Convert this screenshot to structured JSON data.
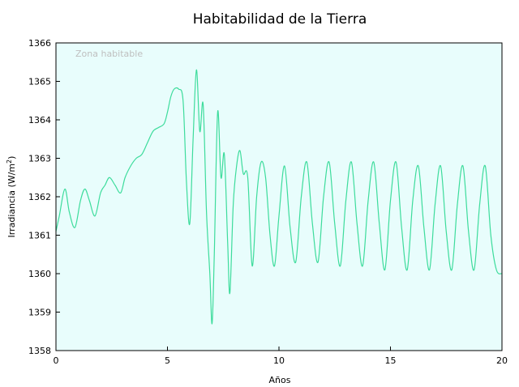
{
  "chart_data": {
    "type": "line",
    "title": "Habitabilidad de la Tierra",
    "xlabel": "Años",
    "ylabel_main": "Irradiancia (W/m",
    "ylabel_sup": "2",
    "ylabel_close": ")",
    "zone_label": "Zona habitable",
    "xlim": [
      0,
      20
    ],
    "ylim": [
      1358,
      1366
    ],
    "x_ticks": [
      "0",
      "5",
      "10",
      "15",
      "20"
    ],
    "y_ticks": [
      "1358",
      "1359",
      "1360",
      "1361",
      "1362",
      "1363",
      "1364",
      "1365",
      "1366"
    ],
    "grid": false,
    "colors": {
      "line": "#3ddc9c",
      "background": "#e8fdfc",
      "frame": "#000000"
    },
    "series": [
      {
        "x": [
          0,
          0.15,
          0.4,
          0.6,
          0.85,
          1.1,
          1.3,
          1.5,
          1.75,
          2.0,
          2.2,
          2.4,
          2.65,
          2.9,
          3.1,
          3.35,
          3.6,
          3.85,
          4.1,
          4.35,
          4.6,
          4.85,
          5.0,
          5.15,
          5.3,
          5.5,
          5.7,
          5.85,
          6.0,
          6.15,
          6.3,
          6.45,
          6.6,
          6.75,
          6.9,
          7.0,
          7.1,
          7.25,
          7.4,
          7.55,
          7.7,
          7.8,
          7.95,
          8.1,
          8.25,
          8.4,
          8.6,
          8.8,
          9.0,
          9.2,
          9.4,
          9.6,
          9.8,
          10.0,
          10.25,
          10.5,
          10.75,
          11.0,
          11.25,
          11.5,
          11.75,
          12.0,
          12.25,
          12.5,
          12.75,
          13.0,
          13.25,
          13.5,
          13.75,
          14.0,
          14.25,
          14.5,
          14.75,
          15.0,
          15.25,
          15.5,
          15.75,
          16.0,
          16.25,
          16.5,
          16.75,
          17.0,
          17.25,
          17.5,
          17.75,
          18.0,
          18.25,
          18.5,
          18.75,
          19.0,
          19.25,
          19.5,
          19.75,
          20.0
        ],
        "y": [
          1361.1,
          1361.5,
          1362.2,
          1361.6,
          1361.2,
          1361.9,
          1362.2,
          1361.9,
          1361.5,
          1362.1,
          1362.3,
          1362.5,
          1362.3,
          1362.1,
          1362.5,
          1362.8,
          1363.0,
          1363.1,
          1363.4,
          1363.7,
          1363.8,
          1363.9,
          1364.2,
          1364.6,
          1364.8,
          1364.8,
          1364.5,
          1362.4,
          1361.3,
          1363.5,
          1365.3,
          1363.7,
          1364.4,
          1361.6,
          1360.0,
          1358.7,
          1360.5,
          1364.2,
          1362.5,
          1363.1,
          1360.8,
          1359.5,
          1361.8,
          1362.8,
          1363.2,
          1362.6,
          1362.5,
          1360.2,
          1362.0,
          1362.9,
          1362.5,
          1361.0,
          1360.2,
          1361.5,
          1362.8,
          1361.2,
          1360.3,
          1362.0,
          1362.9,
          1361.3,
          1360.3,
          1362.0,
          1362.9,
          1361.3,
          1360.2,
          1361.9,
          1362.9,
          1361.3,
          1360.2,
          1361.9,
          1362.9,
          1361.3,
          1360.1,
          1361.9,
          1362.9,
          1361.2,
          1360.1,
          1361.9,
          1362.8,
          1361.2,
          1360.1,
          1361.8,
          1362.8,
          1361.1,
          1360.1,
          1361.8,
          1362.8,
          1361.1,
          1360.1,
          1361.8,
          1362.8,
          1361.0,
          1360.1,
          1360.0
        ]
      }
    ]
  }
}
